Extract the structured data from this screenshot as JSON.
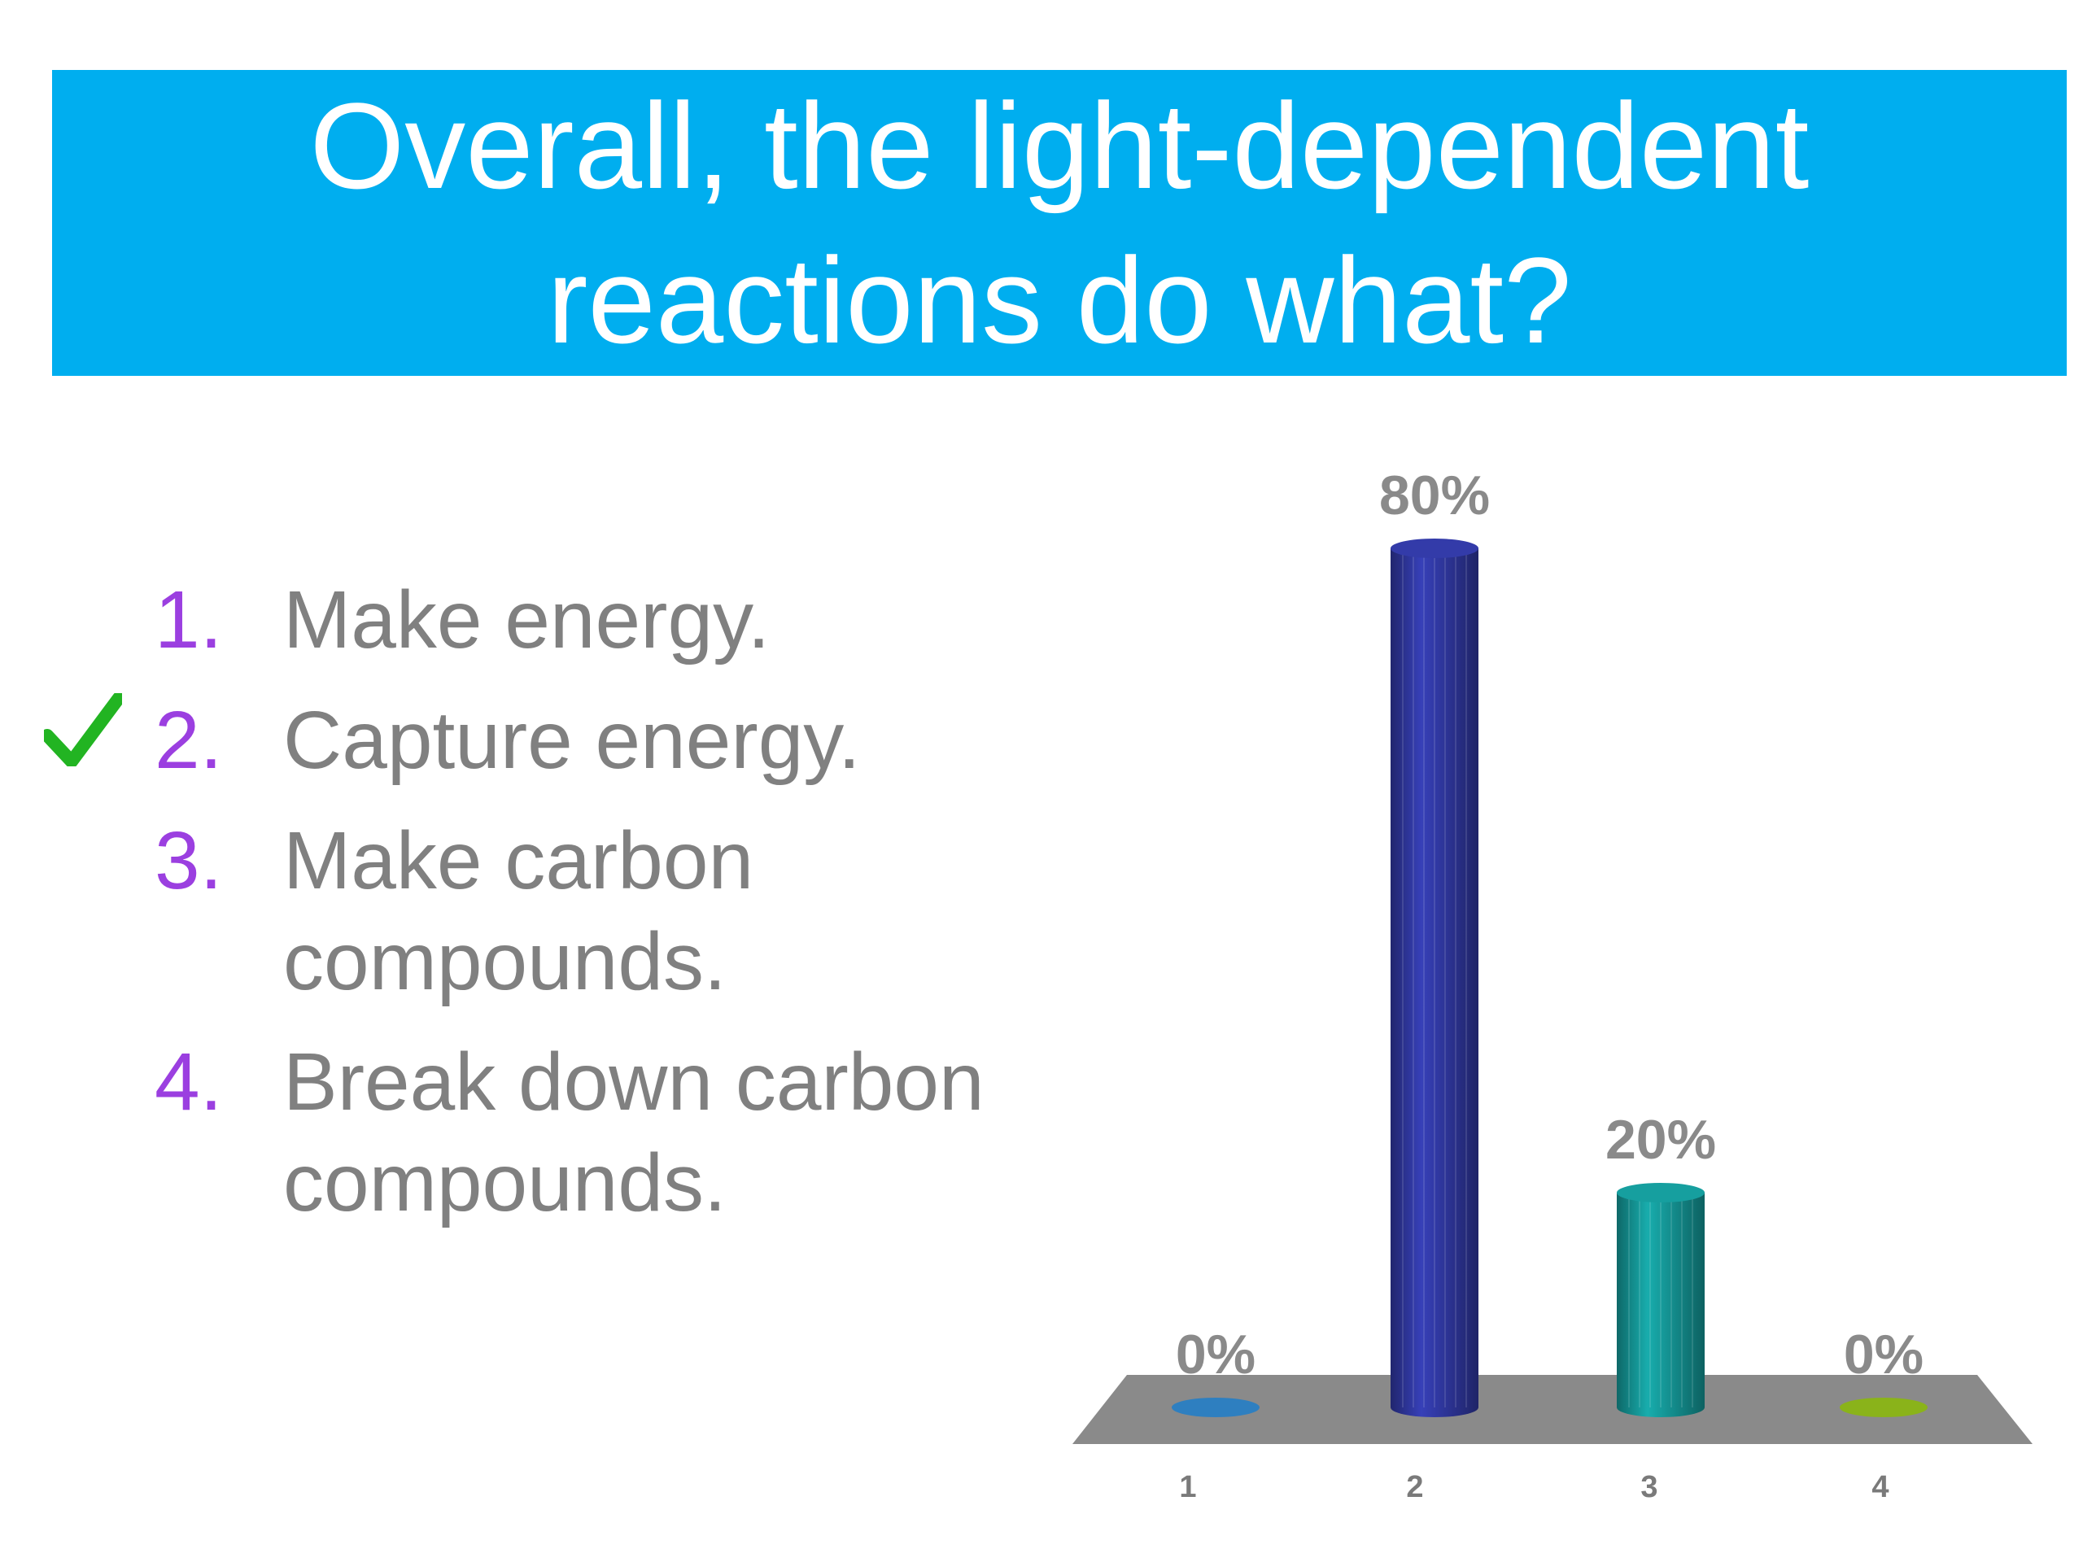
{
  "question": {
    "lines": [
      "Overall, the light-dependent",
      "reactions do what?"
    ]
  },
  "options": [
    {
      "num": "1.",
      "lines": [
        "Make energy."
      ],
      "correct": false
    },
    {
      "num": "2.",
      "lines": [
        "Capture energy."
      ],
      "correct": true
    },
    {
      "num": "3.",
      "lines": [
        "Make carbon",
        "compounds."
      ],
      "correct": false
    },
    {
      "num": "4.",
      "lines": [
        "Break down carbon",
        "compounds."
      ],
      "correct": false
    }
  ],
  "icons": {
    "correct_marker": "checkmark-icon"
  },
  "colors": {
    "banner": "#00aeef",
    "option_number": "#9b3fe0",
    "option_text": "#808080",
    "checkmark": "#22b422",
    "floor": "#8a8a8a"
  },
  "chart_data": {
    "type": "bar",
    "categories": [
      "1",
      "2",
      "3",
      "4"
    ],
    "values": [
      0,
      80,
      20,
      0
    ],
    "value_labels": [
      "0%",
      "80%",
      "20%",
      "0%"
    ],
    "ylim": [
      0,
      100
    ],
    "colors": [
      "#2e7fc0",
      "#2c3393",
      "#138a8a",
      "#8ab31a"
    ],
    "grid": false,
    "legend": "none"
  }
}
